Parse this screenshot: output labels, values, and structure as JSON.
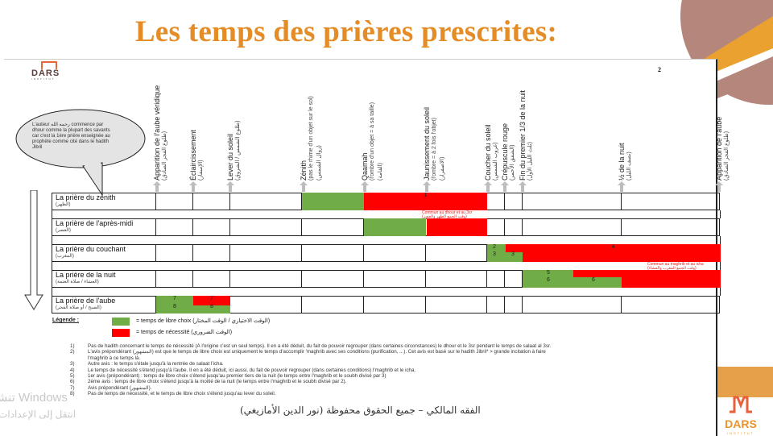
{
  "slide": {
    "title": "Les temps des prières prescrites:",
    "page_number": "2",
    "accent_color": "#e48c26",
    "decor_colors": {
      "mauve": "#b5877c",
      "orange": "#eaa12f"
    }
  },
  "logo": {
    "name": "DARS",
    "subtitle": "INSTITUT"
  },
  "speech_bubble": {
    "text": "L'auteur رحمه الله commence par dhour comme la plupart des savants car c'est la 1ère prière enseignée au prophète comme cité dans le hadith Jibril"
  },
  "columns": [
    {
      "label": "Apparition de l'aube véridique",
      "ar": "(طلوع الفجر الصادق)"
    },
    {
      "label": "Éclaircissement",
      "ar": "(الإسفار)"
    },
    {
      "label": "Lever du soleil",
      "ar": "(طلوع الشمس / الشروق)"
    },
    {
      "label": "Zénith",
      "label2": "(pas le rhime d'un objet sur le sol)",
      "ar": "(زوال الشمس)"
    },
    {
      "label": "Qaamah",
      "label2": "(l'ombre d'un objet = à sa taille)",
      "ar": "(القامة)"
    },
    {
      "label": "Jaunissement du soleil",
      "label2": "(l'ombre = à 2 fois l'objet)",
      "ar": "(الاصفرار)"
    },
    {
      "label": "Coucher du soleil",
      "ar": "(غروب الشمس)"
    },
    {
      "label": "Crépuscule rouge",
      "ar": "(الشفق الأحمر)"
    },
    {
      "label": "Fin du premier 1/3 de la nuit",
      "ar": "(ثلث الليل الأول)"
    },
    {
      "label": "½ de la nuit",
      "ar": "(نصف الليل)"
    },
    {
      "label": "Apparition de l'aube",
      "ar": "(طلوع الفجر الصادق)"
    }
  ],
  "prayers": [
    {
      "label": "La prière du zénith",
      "ar": "(الظهر)"
    },
    {
      "label": "La prière de l'après-midi",
      "ar": "(العصر)"
    },
    {
      "label": "La prière du couchant",
      "ar": "(المغرب)"
    },
    {
      "label": "La prière de la nuit",
      "ar": "(العشاء / صلاة العتمة)"
    },
    {
      "label": "La prière de l'aube",
      "ar": "(الصبح / أو صلاة الفجر)"
    }
  ],
  "bar_labels": {
    "zenith_red": "1",
    "couchant_green_top": "2",
    "couchant_green_bottom": "3",
    "couchant_mid": "3",
    "couchant_red": "4",
    "nuit_green_top": "5",
    "nuit_green_bottom": "6",
    "nuit_mid": "6",
    "aube_green_top": "7",
    "aube_green_bottom": "8",
    "aube_red_top": "7",
    "aube_red_bottom": "8"
  },
  "notes_red": {
    "dhuhr_asr": "Commun au dhour et au 3sr",
    "dhuhr_asr_ar": "(وقت الجمع الظهر والعصر)",
    "maghrib_isha": "Commun au maghrib et au icha",
    "maghrib_isha_ar": "(وقت الجمع المغرب والعشاء)"
  },
  "legend": {
    "title": "Légende :",
    "green_color": "#70ad47",
    "red_color": "#ff0000",
    "green_text": "= temps de libre choix (الوقت الاختياري / الوقت المختار)",
    "red_text": "= temps de nécessité (الوقت الضروري)"
  },
  "notes": [
    {
      "num": "1)",
      "text": "Pas de hadith concernant le temps de nécessité (À l'origine c'est un seul temps). Il en a été déduit, du fait de pouvoir regrouper (dans certaines circonstances) le dhour et le 3sr pendant le temps de salaat al 3sr."
    },
    {
      "num": "2)",
      "text": "L'avis prépondérant (المشهور) est que le temps de libre choix est uniquement le temps d'accomplir 'maghrib avec ses conditions (purification, ...). Cet avis est basé sur le hadith Jibril* > grande incitation à faire"
    },
    {
      "num": "",
      "text": "l'maghrib à ce temps là."
    },
    {
      "num": "3)",
      "text": "Autre avis : le temps s'étale jusqu'à la rentrée de salaat l'icha."
    },
    {
      "num": "4)",
      "text": "Le temps de nécessité s'étend jusqu'à l'aube. Il en a été déduit, ici aussi, du fait de pouvoir regrouper (dans certaines conditions) l'maghrib et le icha."
    },
    {
      "num": "5)",
      "text": "1er avis (prépondérant) : temps de libre choix s'étend jusqu'au premier tiers de la nuit (le temps entre l'maghrib et le soubh divisé par 3)"
    },
    {
      "num": "6)",
      "text": "2ème avis : temps de libre choix s'étend jusqu'à la moitié de la nuit (le temps entre l'maghrib et le soubh divisé par 2)."
    },
    {
      "num": "7)",
      "text": "Avis prépondérant (المشهور)."
    },
    {
      "num": "8)",
      "text": "Pas de temps de nécessité, et le temps de libre choix s'étend jusqu'au lever du soleil."
    }
  ],
  "footer": {
    "text": "الفقه المالكي – جميع الحقوق محفوظة (نور الدين الأمازيغي)"
  },
  "watermark": {
    "line1": "تنشيط Windows",
    "line2": "انتقل إلى الإعدادات"
  }
}
